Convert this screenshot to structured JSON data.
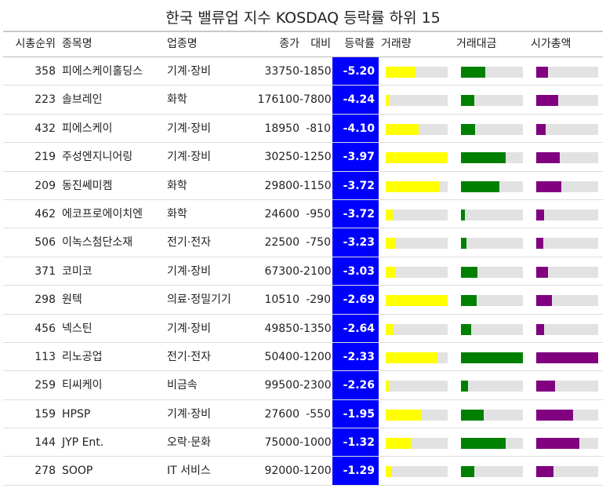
{
  "chart_data": {
    "type": "table",
    "title": "한국 밸류업 지수 KOSDAQ 등락률 하위 15",
    "columns": [
      "시총순위",
      "종목명",
      "업종명",
      "종가",
      "대비",
      "등락률",
      "거래량",
      "거래대금",
      "시가총액"
    ],
    "colors": {
      "change_bg": "#0000ff",
      "volume_bar": "#ffff00",
      "amount_bar": "#008000",
      "cap_bar": "#800080",
      "bar_track": "#e2e2e2"
    },
    "rows": [
      {
        "rank": "358",
        "name": "피에스케이홀딩스",
        "industry": "기계·장비",
        "close": "33750",
        "diff": "-1850",
        "change": "-5.20",
        "volume": 0.48,
        "amount": 0.39,
        "cap": 0.19
      },
      {
        "rank": "223",
        "name": "솔브레인",
        "industry": "화학",
        "close": "176100",
        "diff": "-7800",
        "change": "-4.24",
        "volume": 0.05,
        "amount": 0.22,
        "cap": 0.36
      },
      {
        "rank": "432",
        "name": "피에스케이",
        "industry": "기계·장비",
        "close": "18950",
        "diff": "-810",
        "change": "-4.10",
        "volume": 0.53,
        "amount": 0.23,
        "cap": 0.15
      },
      {
        "rank": "219",
        "name": "주성엔지니어링",
        "industry": "기계·장비",
        "close": "30250",
        "diff": "-1250",
        "change": "-3.97",
        "volume": 1.0,
        "amount": 0.72,
        "cap": 0.38
      },
      {
        "rank": "209",
        "name": "동진쎄미켐",
        "industry": "화학",
        "close": "29800",
        "diff": "-1150",
        "change": "-3.72",
        "volume": 0.87,
        "amount": 0.62,
        "cap": 0.41
      },
      {
        "rank": "462",
        "name": "에코프로에이치엔",
        "industry": "화학",
        "close": "24600",
        "diff": "-950",
        "change": "-3.72",
        "volume": 0.11,
        "amount": 0.06,
        "cap": 0.13
      },
      {
        "rank": "506",
        "name": "이녹스첨단소재",
        "industry": "전기·전자",
        "close": "22500",
        "diff": "-750",
        "change": "-3.23",
        "volume": 0.16,
        "amount": 0.09,
        "cap": 0.12
      },
      {
        "rank": "371",
        "name": "코미코",
        "industry": "기계·장비",
        "close": "67300",
        "diff": "-2100",
        "change": "-3.03",
        "volume": 0.16,
        "amount": 0.27,
        "cap": 0.19
      },
      {
        "rank": "298",
        "name": "원텍",
        "industry": "의료·정밀기기",
        "close": "10510",
        "diff": "-290",
        "change": "-2.69",
        "volume": 1.0,
        "amount": 0.25,
        "cap": 0.25
      },
      {
        "rank": "456",
        "name": "넥스틴",
        "industry": "기계·장비",
        "close": "49850",
        "diff": "-1350",
        "change": "-2.64",
        "volume": 0.13,
        "amount": 0.16,
        "cap": 0.13
      },
      {
        "rank": "113",
        "name": "리노공업",
        "industry": "전기·전자",
        "close": "50400",
        "diff": "-1200",
        "change": "-2.33",
        "volume": 0.84,
        "amount": 1.0,
        "cap": 1.0
      },
      {
        "rank": "259",
        "name": "티씨케이",
        "industry": "비금속",
        "close": "99500",
        "diff": "-2300",
        "change": "-2.26",
        "volume": 0.05,
        "amount": 0.12,
        "cap": 0.31
      },
      {
        "rank": "159",
        "name": "HPSP",
        "industry": "기계·장비",
        "close": "27600",
        "diff": "-550",
        "change": "-1.95",
        "volume": 0.58,
        "amount": 0.37,
        "cap": 0.6
      },
      {
        "rank": "144",
        "name": "JYP Ent.",
        "industry": "오락·문화",
        "close": "75000",
        "diff": "-1000",
        "change": "-1.32",
        "volume": 0.41,
        "amount": 0.72,
        "cap": 0.7
      },
      {
        "rank": "278",
        "name": "SOOP",
        "industry": "IT 서비스",
        "close": "92000",
        "diff": "-1200",
        "change": "-1.29",
        "volume": 0.1,
        "amount": 0.22,
        "cap": 0.28
      }
    ]
  }
}
